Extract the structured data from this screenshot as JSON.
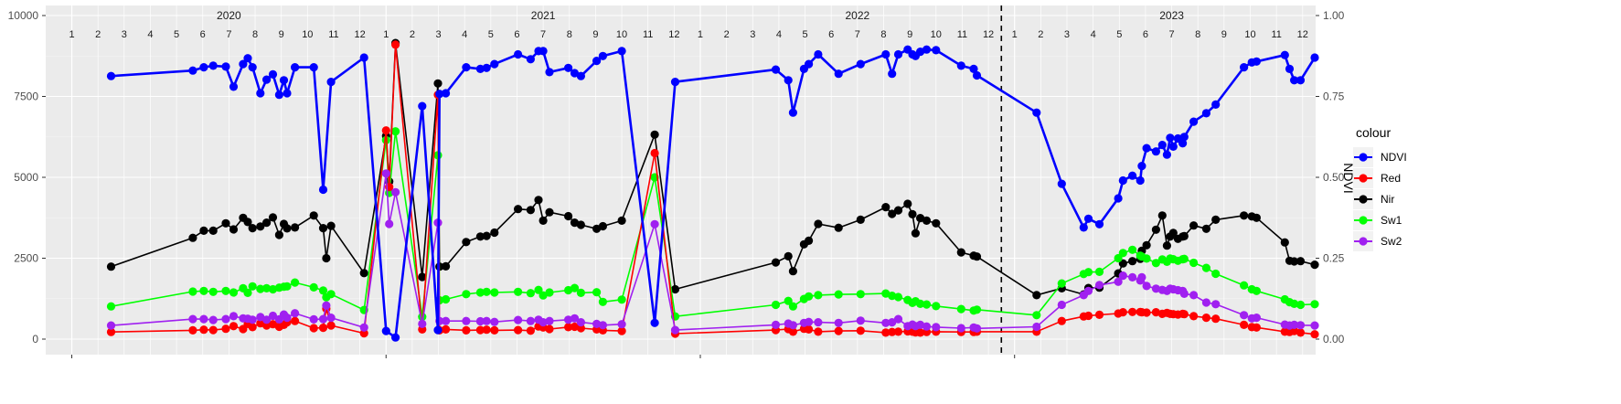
{
  "chart_data": {
    "type": "line",
    "title": "",
    "xlabel": "",
    "ylabel": "",
    "ylabel_right": "NDVI",
    "ylim": [
      0,
      10000
    ],
    "ylim_right": [
      0,
      1
    ],
    "y_ticks": [
      "0",
      "2500",
      "5000",
      "7500",
      "10000"
    ],
    "y_ticks_right": [
      "0.00",
      "0.25",
      "0.50",
      "0.75",
      "1.00"
    ],
    "x_domain": [
      2019.917,
      2023.958
    ],
    "years": [
      {
        "label": "2020",
        "months": [
          "1",
          "2",
          "3",
          "4",
          "5",
          "6",
          "7",
          "8",
          "9",
          "10",
          "11",
          "12"
        ]
      },
      {
        "label": "2021",
        "months": [
          "1",
          "2",
          "3",
          "4",
          "5",
          "6",
          "7",
          "8",
          "9",
          "10",
          "11",
          "12"
        ]
      },
      {
        "label": "2022",
        "months": [
          "1",
          "2",
          "3",
          "4",
          "5",
          "6",
          "7",
          "8",
          "9",
          "10",
          "11",
          "12"
        ]
      },
      {
        "label": "2023",
        "months": [
          "1",
          "2",
          "3",
          "4",
          "5",
          "6",
          "7",
          "8",
          "9",
          "10",
          "11",
          "12"
        ]
      }
    ],
    "vline_x": 2022.958,
    "grid": true,
    "legend": {
      "title": "colour",
      "position": "right"
    },
    "series": [
      {
        "name": "NDVI",
        "color": "#0000ff",
        "axis": "right",
        "x": [
          2020.125,
          2020.385,
          2020.42,
          2020.45,
          2020.49,
          2020.515,
          2020.545,
          2020.56,
          2020.575,
          2020.6,
          2020.62,
          2020.64,
          2020.66,
          2020.675,
          2020.685,
          2020.71,
          2020.77,
          2020.8,
          2020.825,
          2020.84,
          2020.93,
          2021.0,
          2021.03,
          2021.05,
          2021.17,
          2021.19,
          2021.2,
          2021.215,
          2021.23,
          2021.3,
          2021.36,
          2021.38,
          2021.42,
          2021.495,
          2021.53,
          2021.55,
          2021.57,
          2021.59,
          2021.65,
          2021.67,
          2021.69,
          2021.73,
          2021.745,
          2021.79,
          2021.85,
          2021.875,
          2021.94
        ],
        "y": [
          0.813,
          0.83,
          0.84,
          0.845,
          0.842,
          0.78,
          0.85,
          0.868,
          0.84,
          0.76,
          0.802,
          0.818,
          0.755,
          0.8,
          0.76,
          0.84,
          0.84,
          0.462,
          0.795,
          0.87,
          0.025,
          0.005,
          0.72,
          0.028,
          0.758,
          0.76,
          0.84,
          0.835,
          0.838,
          0.85,
          0.88,
          0.865,
          0.89,
          0.89,
          0.825,
          0.838,
          0.822,
          0.813,
          0.86,
          0.875,
          0.89,
          0.05,
          0.795,
          0.835,
          0.835,
          0.8,
          0.7
        ],
        "y_pending": true
      },
      {
        "name": "Red",
        "color": "#ff0000",
        "axis": "left",
        "x": [],
        "y": []
      },
      {
        "name": "Nir",
        "color": "#000000",
        "axis": "left",
        "x": [],
        "y": []
      },
      {
        "name": "Sw1",
        "color": "#00ff00",
        "axis": "left",
        "x": [],
        "y": []
      },
      {
        "name": "Sw2",
        "color": "#a020f0",
        "axis": "left",
        "x": [],
        "y": []
      }
    ]
  }
}
